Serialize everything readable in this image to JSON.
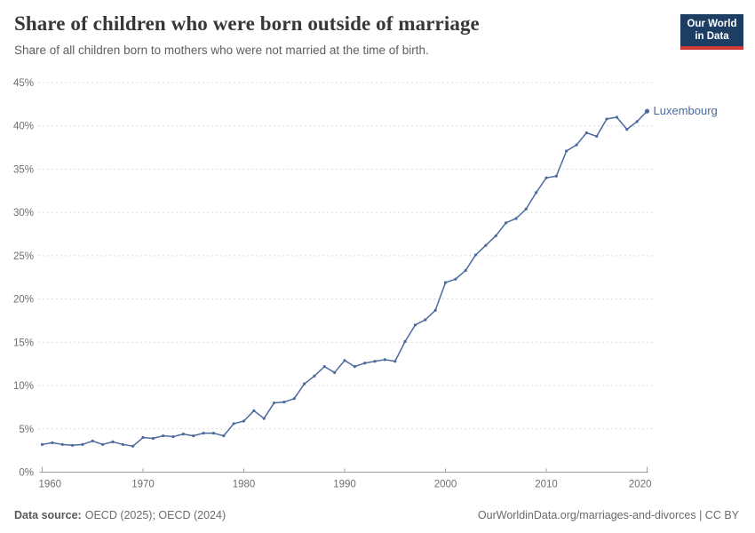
{
  "header": {
    "title": "Share of children who were born outside of marriage",
    "subtitle": "Share of all children born to mothers who were not married at the time of birth.",
    "logo": {
      "line1": "Our World",
      "line2": "in Data",
      "bg": "#1d3d63",
      "stripe": "#cf3b32"
    }
  },
  "footer": {
    "source_label": "Data source:",
    "source_text": "OECD (2025); OECD (2024)",
    "attribution": "OurWorldinData.org/marriages-and-divorces | CC BY"
  },
  "colors": {
    "line": "#4c6a9d",
    "entity_label": "#4c6a9d",
    "grid": "#dcdcdc",
    "axis": "#a0a0a0",
    "tick_text": "#6e6e6e"
  },
  "chart_data": {
    "type": "line",
    "title": "Share of children who were born outside of marriage",
    "subtitle": "Share of all children born to mothers who were not married at the time of birth.",
    "xlabel": "",
    "ylabel": "",
    "ylim": [
      0,
      45
    ],
    "y_ticks": [
      0,
      5,
      10,
      15,
      20,
      25,
      30,
      35,
      40,
      45
    ],
    "y_tick_suffix": "%",
    "x_ticks": [
      1960,
      1970,
      1980,
      1990,
      2000,
      2010,
      2020
    ],
    "grid": "horizontal-dashed",
    "legend": "end-of-line-label",
    "x": [
      1960,
      1961,
      1962,
      1963,
      1964,
      1965,
      1966,
      1967,
      1968,
      1969,
      1970,
      1971,
      1972,
      1973,
      1974,
      1975,
      1976,
      1977,
      1978,
      1979,
      1980,
      1981,
      1982,
      1983,
      1984,
      1985,
      1986,
      1987,
      1988,
      1989,
      1990,
      1991,
      1992,
      1993,
      1994,
      1995,
      1996,
      1997,
      1998,
      1999,
      2000,
      2001,
      2002,
      2003,
      2004,
      2005,
      2006,
      2007,
      2008,
      2009,
      2010,
      2011,
      2012,
      2013,
      2014,
      2015,
      2016,
      2017,
      2018,
      2019,
      2020
    ],
    "series": [
      {
        "name": "Luxembourg",
        "color": "#4c6a9d",
        "values": [
          3.2,
          3.4,
          3.2,
          3.1,
          3.2,
          3.6,
          3.2,
          3.5,
          3.2,
          3.0,
          4.0,
          3.9,
          4.2,
          4.1,
          4.4,
          4.2,
          4.5,
          4.5,
          4.2,
          5.6,
          5.9,
          7.1,
          6.2,
          8.0,
          8.1,
          8.5,
          10.2,
          11.1,
          12.2,
          11.5,
          12.9,
          12.2,
          12.6,
          12.8,
          13.0,
          12.8,
          15.1,
          17.0,
          17.6,
          18.7,
          21.9,
          22.3,
          23.3,
          25.1,
          26.2,
          27.3,
          28.8,
          29.3,
          30.4,
          32.3,
          34.0,
          34.2,
          37.1,
          37.8,
          39.2,
          38.8,
          40.8,
          41.0,
          39.6,
          40.5,
          41.7
        ]
      }
    ]
  }
}
